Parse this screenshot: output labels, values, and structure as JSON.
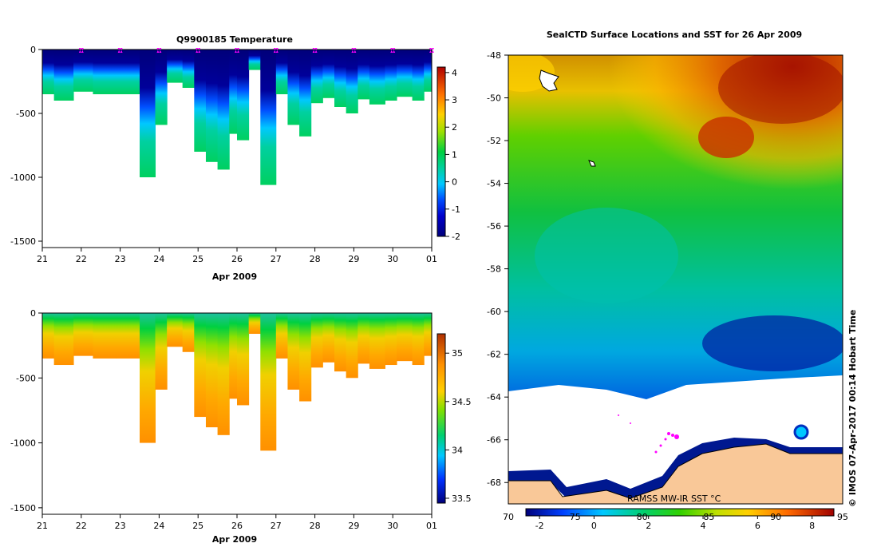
{
  "chart_data": [
    {
      "id": "temperature-section",
      "type": "heatmap",
      "title": "Q9900185  Temperature",
      "xlabel": "Apr 2009",
      "x_tick_labels": [
        "21",
        "22",
        "23",
        "24",
        "25",
        "26",
        "27",
        "28",
        "29",
        "30",
        "01"
      ],
      "ylim": [
        -1550,
        0
      ],
      "y_ticks": [
        0,
        -500,
        -1000,
        -1500
      ],
      "y_tick_labels": [
        "0",
        "-500",
        "-1000",
        "-1500"
      ],
      "colorbar": {
        "min": -2,
        "max": 4.2,
        "ticks": [
          "4",
          "3",
          "2",
          "1",
          "0",
          "-1",
          "-2"
        ]
      },
      "profile_days": [
        21.0,
        21.3,
        21.8,
        22.3,
        22.9,
        23.5,
        23.9,
        24.2,
        24.6,
        24.9,
        25.2,
        25.5,
        25.8,
        26.0,
        26.3,
        26.6,
        27.0,
        27.3,
        27.6,
        27.9,
        28.2,
        28.5,
        28.8,
        29.1,
        29.4,
        29.8,
        30.1,
        30.5,
        30.8
      ],
      "profile_depths": [
        350,
        400,
        330,
        350,
        350,
        1000,
        590,
        260,
        300,
        800,
        880,
        940,
        660,
        710,
        160,
        1060,
        350,
        590,
        680,
        420,
        380,
        450,
        500,
        390,
        430,
        400,
        370,
        400,
        330
      ],
      "surface_markers": [
        22,
        23,
        24,
        25,
        26,
        27,
        28,
        29,
        30,
        31
      ]
    },
    {
      "id": "salinity-section",
      "type": "heatmap",
      "title": "",
      "xlabel": "Apr 2009",
      "x_tick_labels": [
        "21",
        "22",
        "23",
        "24",
        "25",
        "26",
        "27",
        "28",
        "29",
        "30",
        "01"
      ],
      "ylim": [
        -1550,
        0
      ],
      "y_ticks": [
        0,
        -500,
        -1000,
        -1500
      ],
      "y_tick_labels": [
        "0",
        "-500",
        "-1000",
        "-1500"
      ],
      "colorbar": {
        "min": 33.45,
        "max": 35.2,
        "ticks": [
          "35",
          "34.5",
          "34",
          "33.5"
        ]
      }
    },
    {
      "id": "sst-map",
      "type": "heatmap",
      "title": "SealCTD Surface Locations and SST for 26 Apr 2009",
      "xlim": [
        70,
        95
      ],
      "ylim": [
        -69,
        -48
      ],
      "y_tick_labels": [
        "-48",
        "-50",
        "-52",
        "-54",
        "-56",
        "-58",
        "-60",
        "-62",
        "-64",
        "-66",
        "-68"
      ],
      "colorbar": {
        "label": "RAMSS MW-IR SST °C",
        "min": -2.5,
        "max": 8.8,
        "ticks": [
          "-2",
          "0",
          "2",
          "4",
          "6",
          "8"
        ],
        "lon_ticks": [
          "70",
          "75",
          "80",
          "85",
          "90",
          "95"
        ]
      },
      "credit": "© IMOS 07-Apr-2017 00:14 Hobart Time"
    }
  ]
}
